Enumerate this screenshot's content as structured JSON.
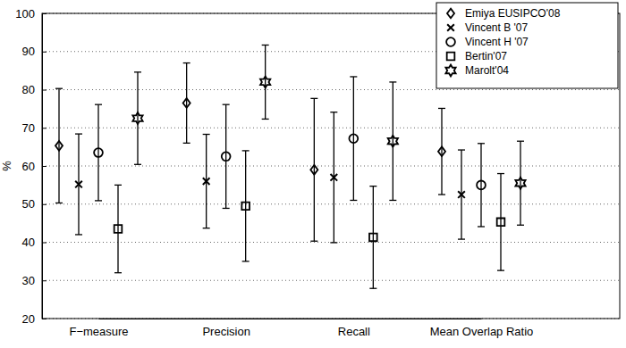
{
  "chart_data": {
    "type": "errorbar",
    "categories": [
      "F−measure",
      "Precision",
      "Recall",
      "Mean Overlap Ratio"
    ],
    "y_label": "%",
    "ylim": [
      20,
      100
    ],
    "yticks": [
      20,
      30,
      40,
      50,
      60,
      70,
      80,
      90,
      100
    ],
    "grid": true,
    "legend": "top-right",
    "color": "#000000",
    "series": [
      {
        "name": "Emiya EUSIPCO'08",
        "marker": "diamond",
        "values": [
          65.3,
          76.5,
          59,
          63.8
        ],
        "errors": [
          15,
          10.5,
          18.7,
          11.3
        ]
      },
      {
        "name": "Vincent B '07",
        "marker": "x",
        "values": [
          55.2,
          56,
          57,
          52.5
        ],
        "errors": [
          13.2,
          12.3,
          17.1,
          11.7
        ]
      },
      {
        "name": "Vincent H '07",
        "marker": "circle",
        "values": [
          63.5,
          62.5,
          67.2,
          55
        ],
        "errors": [
          12.6,
          13.6,
          16.2,
          10.9
        ]
      },
      {
        "name": "Bertin'07",
        "marker": "square",
        "values": [
          43.5,
          49.5,
          41.3,
          45.3
        ],
        "errors": [
          11.5,
          14.5,
          13.4,
          12.7
        ]
      },
      {
        "name": "Marolt'04",
        "marker": "hexagram",
        "values": [
          72.5,
          82,
          66.5,
          55.5
        ],
        "errors": [
          12.1,
          9.7,
          15.5,
          11
        ]
      }
    ]
  }
}
